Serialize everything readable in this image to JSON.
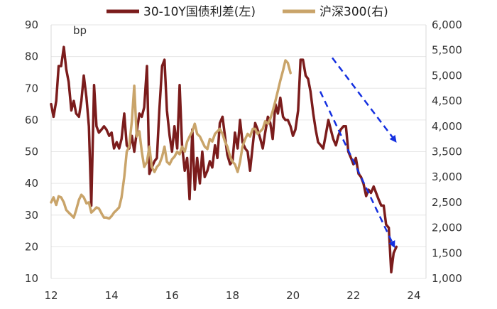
{
  "chart_data": {
    "type": "line",
    "title": "",
    "xlabel": "",
    "left_axis": {
      "unit": "bp",
      "ylim": [
        10,
        90
      ],
      "ticks": [
        "10",
        "20",
        "30",
        "40",
        "50",
        "60",
        "70",
        "80",
        "90"
      ]
    },
    "right_axis": {
      "ylim": [
        1000,
        6000
      ],
      "ticks": [
        "1,000",
        "1,500",
        "2,000",
        "2,500",
        "3,000",
        "3,500",
        "4,000",
        "4,500",
        "5,000",
        "5,500",
        "6,000"
      ]
    },
    "x_axis": {
      "xlim": [
        2012,
        2024.4
      ],
      "ticks": [
        {
          "value": 2012,
          "label": "12"
        },
        {
          "value": 2014,
          "label": "14"
        },
        {
          "value": 2016,
          "label": "16"
        },
        {
          "value": 2018,
          "label": "18"
        },
        {
          "value": 2020,
          "label": "20"
        },
        {
          "value": 2022,
          "label": "22"
        },
        {
          "value": 2024,
          "label": "24"
        }
      ]
    },
    "grid": "horizontal",
    "legend_position": "top-center",
    "series": [
      {
        "name": "30-10Y国债利差(左)",
        "axis": "left",
        "color": "#7b1c1c",
        "points": [
          [
            2012.0,
            65
          ],
          [
            2012.08,
            61
          ],
          [
            2012.17,
            66
          ],
          [
            2012.25,
            77
          ],
          [
            2012.33,
            77
          ],
          [
            2012.42,
            83
          ],
          [
            2012.5,
            76
          ],
          [
            2012.58,
            72
          ],
          [
            2012.67,
            63
          ],
          [
            2012.75,
            66
          ],
          [
            2012.83,
            62
          ],
          [
            2012.92,
            61
          ],
          [
            2013.0,
            66
          ],
          [
            2013.08,
            74
          ],
          [
            2013.17,
            67
          ],
          [
            2013.25,
            58
          ],
          [
            2013.33,
            33
          ],
          [
            2013.42,
            71
          ],
          [
            2013.5,
            58
          ],
          [
            2013.58,
            56
          ],
          [
            2013.67,
            57
          ],
          [
            2013.75,
            58
          ],
          [
            2013.83,
            57
          ],
          [
            2013.92,
            55
          ],
          [
            2014.0,
            56
          ],
          [
            2014.08,
            51
          ],
          [
            2014.17,
            53
          ],
          [
            2014.25,
            51
          ],
          [
            2014.33,
            54
          ],
          [
            2014.42,
            62
          ],
          [
            2014.5,
            52
          ],
          [
            2014.58,
            51
          ],
          [
            2014.67,
            55
          ],
          [
            2014.75,
            50
          ],
          [
            2014.83,
            56
          ],
          [
            2014.92,
            62
          ],
          [
            2015.0,
            61
          ],
          [
            2015.08,
            64
          ],
          [
            2015.17,
            77
          ],
          [
            2015.25,
            43
          ],
          [
            2015.33,
            45
          ],
          [
            2015.42,
            47
          ],
          [
            2015.5,
            48
          ],
          [
            2015.58,
            63
          ],
          [
            2015.67,
            77
          ],
          [
            2015.75,
            79
          ],
          [
            2015.83,
            63
          ],
          [
            2015.92,
            55
          ],
          [
            2016.0,
            50
          ],
          [
            2016.08,
            58
          ],
          [
            2016.17,
            51
          ],
          [
            2016.25,
            71
          ],
          [
            2016.33,
            52
          ],
          [
            2016.42,
            44
          ],
          [
            2016.5,
            48
          ],
          [
            2016.58,
            35
          ],
          [
            2016.67,
            57
          ],
          [
            2016.75,
            38
          ],
          [
            2016.83,
            48
          ],
          [
            2016.92,
            40
          ],
          [
            2017.0,
            50
          ],
          [
            2017.08,
            42
          ],
          [
            2017.17,
            44
          ],
          [
            2017.25,
            47
          ],
          [
            2017.33,
            45
          ],
          [
            2017.42,
            52
          ],
          [
            2017.5,
            48
          ],
          [
            2017.58,
            59
          ],
          [
            2017.67,
            61
          ],
          [
            2017.75,
            55
          ],
          [
            2017.83,
            49
          ],
          [
            2017.92,
            46
          ],
          [
            2018.0,
            47
          ],
          [
            2018.08,
            56
          ],
          [
            2018.17,
            51
          ],
          [
            2018.25,
            60
          ],
          [
            2018.33,
            53
          ],
          [
            2018.42,
            51
          ],
          [
            2018.5,
            50
          ],
          [
            2018.58,
            44
          ],
          [
            2018.67,
            52
          ],
          [
            2018.75,
            59
          ],
          [
            2018.83,
            57
          ],
          [
            2018.92,
            54
          ],
          [
            2019.0,
            51
          ],
          [
            2019.08,
            56
          ],
          [
            2019.17,
            61
          ],
          [
            2019.25,
            59
          ],
          [
            2019.33,
            54
          ],
          [
            2019.42,
            65
          ],
          [
            2019.5,
            62
          ],
          [
            2019.58,
            67
          ],
          [
            2019.67,
            61
          ],
          [
            2019.75,
            60
          ],
          [
            2019.83,
            60
          ],
          [
            2019.92,
            58
          ],
          [
            2020.0,
            55
          ],
          [
            2020.08,
            57
          ],
          [
            2020.17,
            63
          ],
          [
            2020.25,
            79
          ],
          [
            2020.33,
            79
          ],
          [
            2020.42,
            74
          ],
          [
            2020.5,
            73
          ],
          [
            2020.58,
            69
          ],
          [
            2020.67,
            62
          ],
          [
            2020.75,
            57
          ],
          [
            2020.83,
            53
          ],
          [
            2020.92,
            52
          ],
          [
            2021.0,
            51
          ],
          [
            2021.08,
            55
          ],
          [
            2021.17,
            60
          ],
          [
            2021.25,
            57
          ],
          [
            2021.33,
            54
          ],
          [
            2021.42,
            52
          ],
          [
            2021.5,
            55
          ],
          [
            2021.58,
            57
          ],
          [
            2021.67,
            58
          ],
          [
            2021.75,
            58
          ],
          [
            2021.83,
            50
          ],
          [
            2021.92,
            48
          ],
          [
            2022.0,
            46
          ],
          [
            2022.08,
            48
          ],
          [
            2022.17,
            43
          ],
          [
            2022.25,
            42
          ],
          [
            2022.33,
            40
          ],
          [
            2022.42,
            36
          ],
          [
            2022.5,
            38
          ],
          [
            2022.58,
            37
          ],
          [
            2022.67,
            39
          ],
          [
            2022.75,
            37
          ],
          [
            2022.83,
            35
          ],
          [
            2022.92,
            33
          ],
          [
            2023.0,
            33
          ],
          [
            2023.08,
            27
          ],
          [
            2023.17,
            26
          ],
          [
            2023.25,
            12
          ],
          [
            2023.33,
            18
          ],
          [
            2023.42,
            20
          ]
        ]
      },
      {
        "name": "沪深300(右)",
        "axis": "right",
        "color": "#c9a46a",
        "points": [
          [
            2012.0,
            2500
          ],
          [
            2012.08,
            2600
          ],
          [
            2012.17,
            2450
          ],
          [
            2012.25,
            2620
          ],
          [
            2012.33,
            2600
          ],
          [
            2012.42,
            2500
          ],
          [
            2012.5,
            2350
          ],
          [
            2012.58,
            2300
          ],
          [
            2012.67,
            2250
          ],
          [
            2012.75,
            2200
          ],
          [
            2012.83,
            2350
          ],
          [
            2012.92,
            2550
          ],
          [
            2013.0,
            2650
          ],
          [
            2013.08,
            2600
          ],
          [
            2013.17,
            2480
          ],
          [
            2013.25,
            2500
          ],
          [
            2013.33,
            2300
          ],
          [
            2013.42,
            2350
          ],
          [
            2013.5,
            2400
          ],
          [
            2013.58,
            2380
          ],
          [
            2013.67,
            2280
          ],
          [
            2013.75,
            2200
          ],
          [
            2013.83,
            2200
          ],
          [
            2013.92,
            2180
          ],
          [
            2014.0,
            2230
          ],
          [
            2014.08,
            2300
          ],
          [
            2014.17,
            2350
          ],
          [
            2014.25,
            2400
          ],
          [
            2014.33,
            2600
          ],
          [
            2014.42,
            3000
          ],
          [
            2014.5,
            3500
          ],
          [
            2014.58,
            3600
          ],
          [
            2014.67,
            4100
          ],
          [
            2014.75,
            4800
          ],
          [
            2014.83,
            3800
          ],
          [
            2014.92,
            3900
          ],
          [
            2015.0,
            3500
          ],
          [
            2015.08,
            3200
          ],
          [
            2015.17,
            3300
          ],
          [
            2015.25,
            3600
          ],
          [
            2015.33,
            3200
          ],
          [
            2015.42,
            3100
          ],
          [
            2015.5,
            3200
          ],
          [
            2015.58,
            3250
          ],
          [
            2015.67,
            3400
          ],
          [
            2015.75,
            3600
          ],
          [
            2015.83,
            3300
          ],
          [
            2015.92,
            3250
          ],
          [
            2016.0,
            3350
          ],
          [
            2016.08,
            3400
          ],
          [
            2016.17,
            3500
          ],
          [
            2016.25,
            3450
          ],
          [
            2016.33,
            3600
          ],
          [
            2016.42,
            3500
          ],
          [
            2016.5,
            3700
          ],
          [
            2016.58,
            3800
          ],
          [
            2016.67,
            3900
          ],
          [
            2016.75,
            4050
          ],
          [
            2016.83,
            3850
          ],
          [
            2016.92,
            3800
          ],
          [
            2017.0,
            3700
          ],
          [
            2017.08,
            3600
          ],
          [
            2017.17,
            3550
          ],
          [
            2017.25,
            3750
          ],
          [
            2017.33,
            3700
          ],
          [
            2017.42,
            3850
          ],
          [
            2017.5,
            3900
          ],
          [
            2017.58,
            3950
          ],
          [
            2017.67,
            3850
          ],
          [
            2017.75,
            3700
          ],
          [
            2017.83,
            3600
          ],
          [
            2017.92,
            3400
          ],
          [
            2018.0,
            3300
          ],
          [
            2018.08,
            3250
          ],
          [
            2018.17,
            3100
          ],
          [
            2018.25,
            3300
          ],
          [
            2018.33,
            3600
          ],
          [
            2018.42,
            3750
          ],
          [
            2018.5,
            3850
          ],
          [
            2018.58,
            3800
          ],
          [
            2018.67,
            3950
          ],
          [
            2018.75,
            3950
          ],
          [
            2018.83,
            3850
          ],
          [
            2018.92,
            3900
          ],
          [
            2019.0,
            3950
          ],
          [
            2019.08,
            4100
          ],
          [
            2019.17,
            4050
          ],
          [
            2019.25,
            4150
          ],
          [
            2019.33,
            4300
          ],
          [
            2019.42,
            4500
          ],
          [
            2019.5,
            4700
          ],
          [
            2019.58,
            4900
          ],
          [
            2019.67,
            5100
          ],
          [
            2019.75,
            5300
          ],
          [
            2019.83,
            5250
          ],
          [
            2019.92,
            5050
          ]
        ]
      }
    ],
    "annotations": [
      {
        "type": "arrow",
        "style": "dashed",
        "color": "#1530e0",
        "from": {
          "x": 2021.3,
          "axis": "right",
          "y": 5350
        },
        "to": {
          "x": 2023.4,
          "axis": "right",
          "y": 3700
        }
      },
      {
        "type": "arrow",
        "style": "dashed",
        "color": "#1530e0",
        "from": {
          "x": 2020.9,
          "axis": "left",
          "y": 69
        },
        "to": {
          "x": 2023.35,
          "axis": "left",
          "y": 20
        }
      }
    ]
  }
}
